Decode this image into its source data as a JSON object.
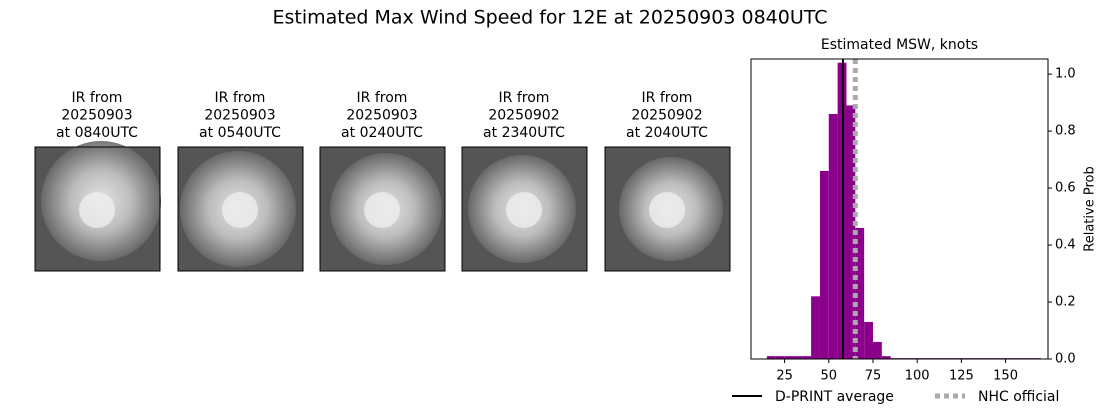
{
  "title": "Estimated Max Wind Speed for 12E at 20250903 0840UTC",
  "images": [
    {
      "caption": [
        "IR from",
        "20250903",
        "at 0840UTC"
      ]
    },
    {
      "caption": [
        "IR from",
        "20250903",
        "at 0540UTC"
      ]
    },
    {
      "caption": [
        "IR from",
        "20250903",
        "at 0240UTC"
      ]
    },
    {
      "caption": [
        "IR from",
        "20250902",
        "at 2340UTC"
      ]
    },
    {
      "caption": [
        "IR from",
        "20250902",
        "at 2040UTC"
      ]
    }
  ],
  "chart_data": {
    "type": "histogram",
    "title": "Estimated MSW, knots",
    "y_label": "Relative Prob",
    "color": "#8b008b",
    "bins": [
      15,
      20,
      25,
      30,
      35,
      40,
      45,
      50,
      55,
      60,
      65,
      70,
      75,
      80,
      85,
      90,
      95,
      100,
      105,
      110,
      115,
      120,
      125,
      130,
      135,
      140,
      145,
      150,
      155,
      160,
      165,
      170
    ],
    "values": [
      0.01,
      0.01,
      0.01,
      0.01,
      0.01,
      0.22,
      0.66,
      0.86,
      1.04,
      0.89,
      0.46,
      0.13,
      0.06,
      0.01,
      0.003,
      0.003,
      0.003,
      0.003,
      0.003,
      0.003,
      0.003,
      0.003,
      0.003,
      0.003,
      0.003,
      0.003,
      0.003,
      0.003,
      0.003,
      0.003,
      0.003
    ],
    "xlim": [
      6,
      174
    ],
    "xticks": [
      25,
      50,
      75,
      100,
      125,
      150
    ],
    "ylim": [
      0,
      1.053
    ],
    "yticks": [
      {
        "value": 0,
        "label": "0.0"
      },
      0.2,
      0.4,
      0.6,
      0.8,
      {
        "value": 1,
        "label": "1.0"
      }
    ],
    "reference_lines": [
      {
        "name": "D-PRINT average",
        "value": 58,
        "color": "#000000",
        "style": "solid"
      },
      {
        "name": "NHC official",
        "value": 65,
        "color": "#aaaaaa",
        "style": "dotted"
      }
    ]
  }
}
